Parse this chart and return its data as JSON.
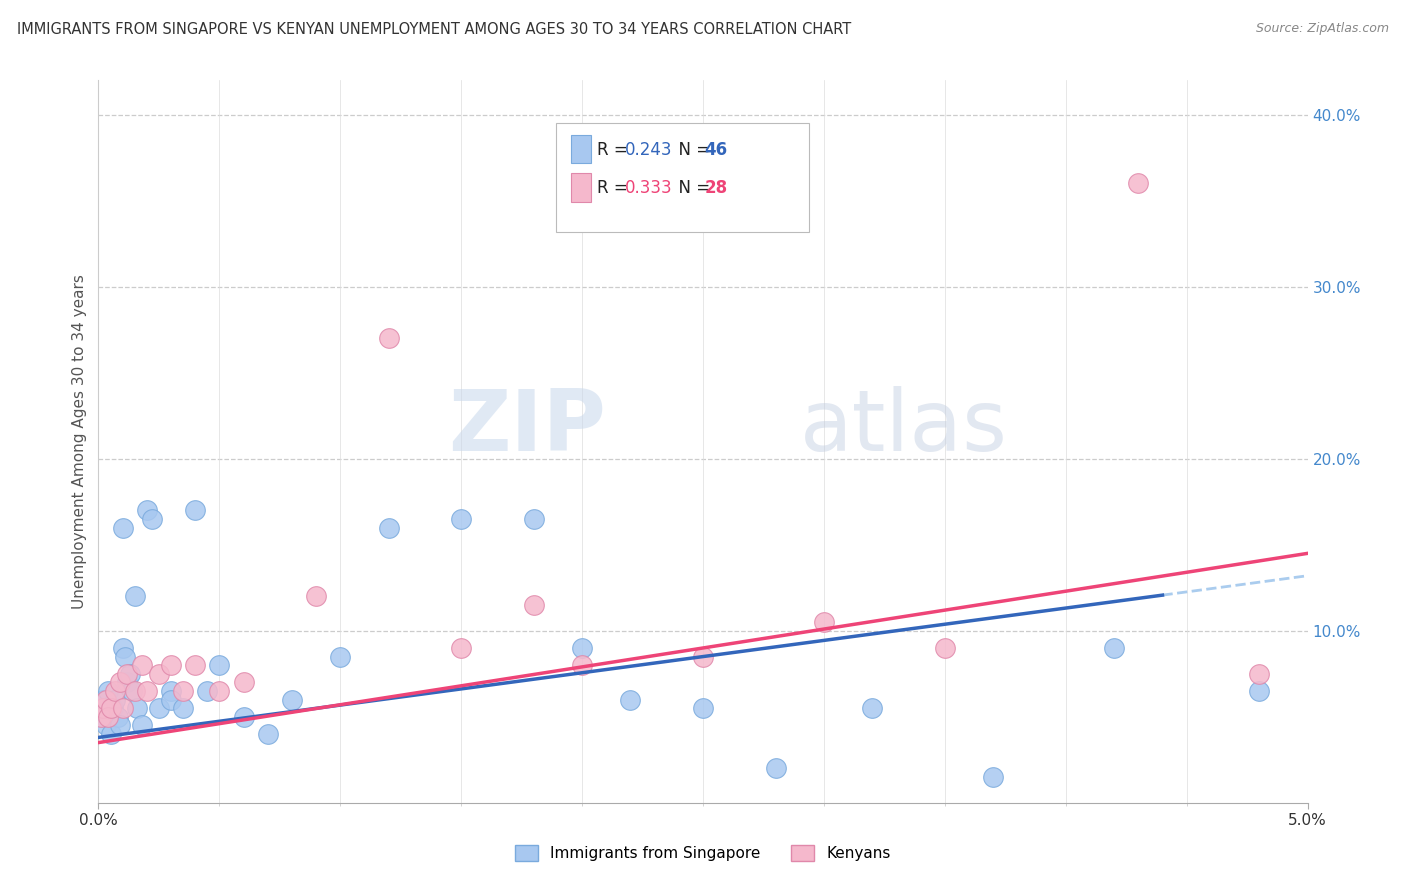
{
  "title": "IMMIGRANTS FROM SINGAPORE VS KENYAN UNEMPLOYMENT AMONG AGES 30 TO 34 YEARS CORRELATION CHART",
  "source": "Source: ZipAtlas.com",
  "ylabel": "Unemployment Among Ages 30 to 34 years",
  "xlim": [
    0.0,
    0.05
  ],
  "ylim": [
    0.0,
    0.42
  ],
  "color_blue": "#a8c8f0",
  "color_pink": "#f5b8cc",
  "color_blue_edge": "#7aaadd",
  "color_pink_edge": "#e088aa",
  "color_blue_line": "#3366bb",
  "color_pink_line": "#ee4477",
  "color_dashed": "#aaccee",
  "watermark_zip": "ZIP",
  "watermark_atlas": "atlas",
  "singapore_x": [
    0.0001,
    0.0002,
    0.0002,
    0.0003,
    0.0003,
    0.0004,
    0.0004,
    0.0005,
    0.0005,
    0.0006,
    0.0007,
    0.0008,
    0.0009,
    0.001,
    0.001,
    0.0011,
    0.0012,
    0.0013,
    0.0014,
    0.0015,
    0.0016,
    0.0018,
    0.002,
    0.0022,
    0.0025,
    0.003,
    0.003,
    0.0035,
    0.004,
    0.0045,
    0.005,
    0.006,
    0.007,
    0.008,
    0.01,
    0.012,
    0.015,
    0.018,
    0.02,
    0.022,
    0.025,
    0.028,
    0.032,
    0.037,
    0.042,
    0.048
  ],
  "singapore_y": [
    0.05,
    0.055,
    0.06,
    0.045,
    0.06,
    0.05,
    0.065,
    0.055,
    0.04,
    0.055,
    0.06,
    0.05,
    0.045,
    0.16,
    0.09,
    0.085,
    0.07,
    0.075,
    0.065,
    0.12,
    0.055,
    0.045,
    0.17,
    0.165,
    0.055,
    0.065,
    0.06,
    0.055,
    0.17,
    0.065,
    0.08,
    0.05,
    0.04,
    0.06,
    0.085,
    0.16,
    0.165,
    0.165,
    0.09,
    0.06,
    0.055,
    0.02,
    0.055,
    0.015,
    0.09,
    0.065
  ],
  "kenyan_x": [
    0.0001,
    0.0002,
    0.0003,
    0.0004,
    0.0005,
    0.0007,
    0.0009,
    0.001,
    0.0012,
    0.0015,
    0.0018,
    0.002,
    0.0025,
    0.003,
    0.0035,
    0.004,
    0.005,
    0.006,
    0.009,
    0.012,
    0.015,
    0.018,
    0.02,
    0.025,
    0.03,
    0.035,
    0.043,
    0.048
  ],
  "kenyan_y": [
    0.05,
    0.055,
    0.06,
    0.05,
    0.055,
    0.065,
    0.07,
    0.055,
    0.075,
    0.065,
    0.08,
    0.065,
    0.075,
    0.08,
    0.065,
    0.08,
    0.065,
    0.07,
    0.12,
    0.27,
    0.09,
    0.115,
    0.08,
    0.085,
    0.105,
    0.09,
    0.36,
    0.075
  ]
}
